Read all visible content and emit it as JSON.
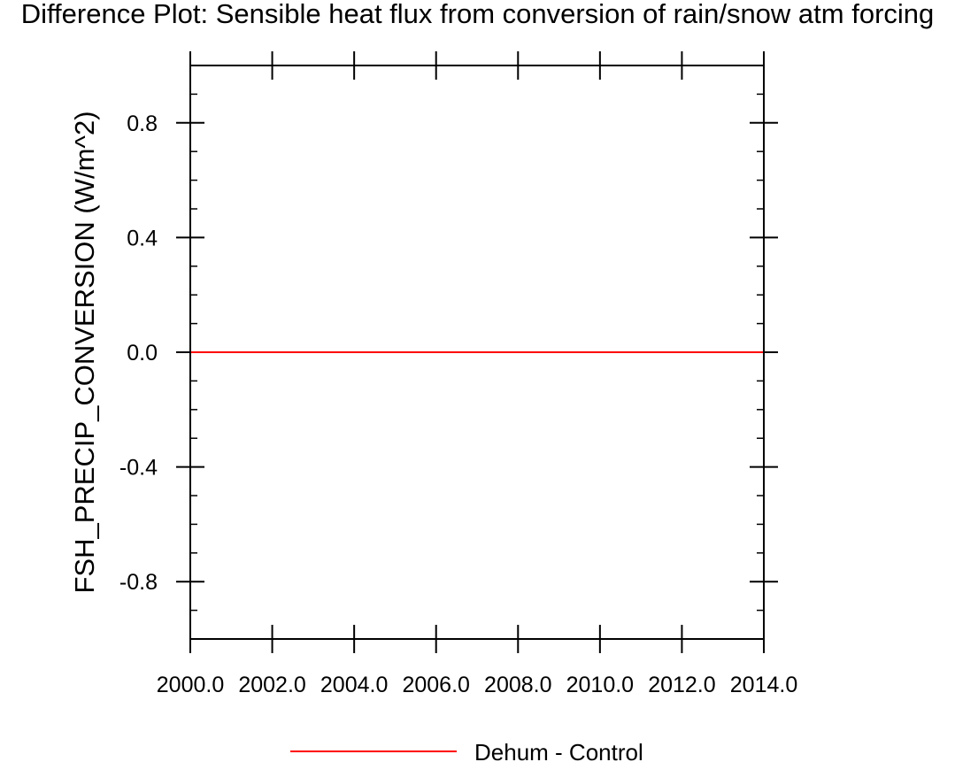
{
  "chart_data": {
    "type": "line",
    "title": "Difference Plot: Sensible heat flux from conversion of rain/snow atm forcing",
    "xlabel": "",
    "ylabel": "FSH_PRECIP_CONVERSION  (W/m^2)",
    "xlim": [
      2000.0,
      2014.0
    ],
    "ylim": [
      -1.0,
      1.0
    ],
    "x_ticks": [
      2000.0,
      2002.0,
      2004.0,
      2006.0,
      2008.0,
      2010.0,
      2012.0,
      2014.0
    ],
    "x_tick_labels": [
      "2000.0",
      "2002.0",
      "2004.0",
      "2006.0",
      "2008.0",
      "2010.0",
      "2012.0",
      "2014.0"
    ],
    "y_ticks": [
      -0.8,
      -0.4,
      0.0,
      0.4,
      0.8
    ],
    "y_tick_labels": [
      "-0.8",
      "-0.4",
      "0.0",
      "0.4",
      "0.8"
    ],
    "grid": false,
    "legend_position": "bottom-center",
    "series": [
      {
        "name": "Dehum - Control",
        "color": "#ff0000",
        "x": [
          2000.0,
          2014.0
        ],
        "y": [
          0.0,
          0.0
        ]
      }
    ]
  }
}
